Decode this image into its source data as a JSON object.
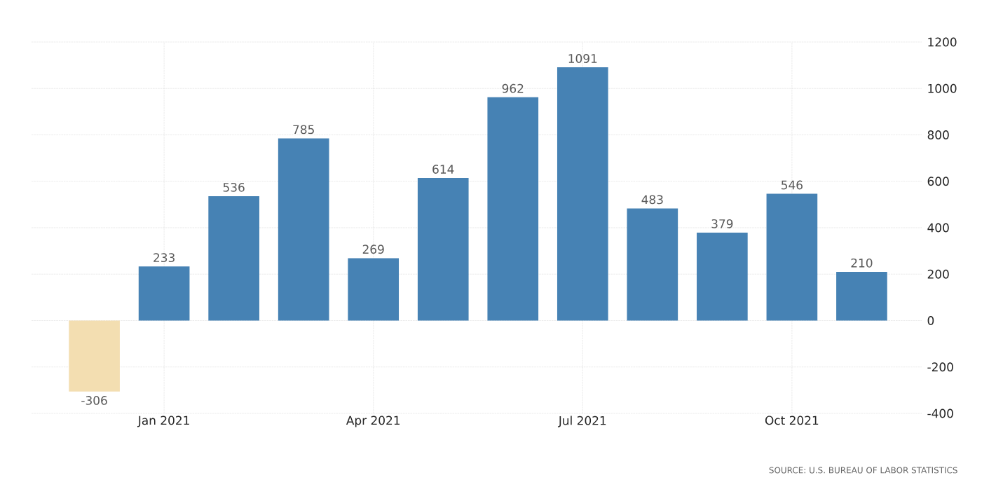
{
  "chart_data": {
    "type": "bar",
    "categories": [
      null,
      "Jan 2021",
      null,
      null,
      "Apr 2021",
      null,
      null,
      "Jul 2021",
      null,
      null,
      "Oct 2021",
      null
    ],
    "values": [
      -306,
      233,
      536,
      785,
      269,
      614,
      962,
      1091,
      483,
      379,
      546,
      210
    ],
    "colors": [
      "#f3deb1",
      "#4682b4",
      "#4682b4",
      "#4682b4",
      "#4682b4",
      "#4682b4",
      "#4682b4",
      "#4682b4",
      "#4682b4",
      "#4682b4",
      "#4682b4",
      "#4682b4"
    ],
    "ylim": [
      -400,
      1200
    ],
    "yticks": [
      -400,
      -200,
      0,
      200,
      400,
      600,
      800,
      1000,
      1200
    ],
    "grid": true,
    "data_labels": true,
    "annotations": [
      "SOURCE: U.S. BUREAU OF LABOR STATISTICS"
    ]
  }
}
